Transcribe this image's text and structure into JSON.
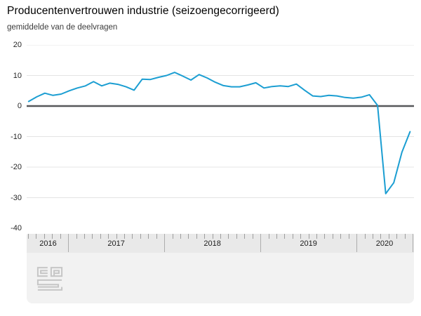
{
  "header": {
    "title": "Producentenvertrouwen industrie (seizoengecorrigeerd)",
    "subtitle": "gemiddelde van de deelvragen"
  },
  "chart_data": {
    "type": "line",
    "title": "Producentenvertrouwen industrie (seizoengecorrigeerd)",
    "subtitle": "gemiddelde van de deelvragen",
    "series_name": "producentenvertrouwen",
    "x": [
      "2016-08",
      "2016-09",
      "2016-10",
      "2016-11",
      "2016-12",
      "2017-01",
      "2017-02",
      "2017-03",
      "2017-04",
      "2017-05",
      "2017-06",
      "2017-07",
      "2017-08",
      "2017-09",
      "2017-10",
      "2017-11",
      "2017-12",
      "2018-01",
      "2018-02",
      "2018-03",
      "2018-04",
      "2018-05",
      "2018-06",
      "2018-07",
      "2018-08",
      "2018-09",
      "2018-10",
      "2018-11",
      "2018-12",
      "2019-01",
      "2019-02",
      "2019-03",
      "2019-04",
      "2019-05",
      "2019-06",
      "2019-07",
      "2019-08",
      "2019-09",
      "2019-10",
      "2019-11",
      "2019-12",
      "2020-01",
      "2020-02",
      "2020-03",
      "2020-04",
      "2020-05",
      "2020-06",
      "2020-07"
    ],
    "values": [
      1.5,
      3.0,
      4.2,
      3.5,
      3.9,
      5.0,
      5.9,
      6.6,
      8.0,
      6.6,
      7.5,
      7.1,
      6.3,
      5.2,
      8.8,
      8.7,
      9.4,
      10.0,
      11.0,
      9.8,
      8.5,
      10.3,
      9.2,
      7.8,
      6.7,
      6.3,
      6.3,
      6.9,
      7.6,
      5.9,
      6.4,
      6.6,
      6.4,
      7.2,
      5.2,
      3.3,
      3.1,
      3.5,
      3.3,
      2.8,
      2.6,
      2.9,
      3.7,
      0.2,
      -28.7,
      -25.1,
      -15.1,
      -8.4
    ],
    "ylim": [
      -40,
      20
    ],
    "yticks": [
      20,
      10,
      0,
      -10,
      -20,
      -30,
      -40
    ],
    "ylabel": "",
    "xlabel": "",
    "x_axis_years": [
      "2016",
      "2017",
      "2018",
      "2019",
      "2020"
    ],
    "legend": "none",
    "grid": "horizontal",
    "line_color": "#1b9ed2",
    "zero_line_color": "#56575a",
    "gridline_color": "#e4e4e4"
  },
  "footer": {
    "logo_name": "cbs-logo"
  }
}
